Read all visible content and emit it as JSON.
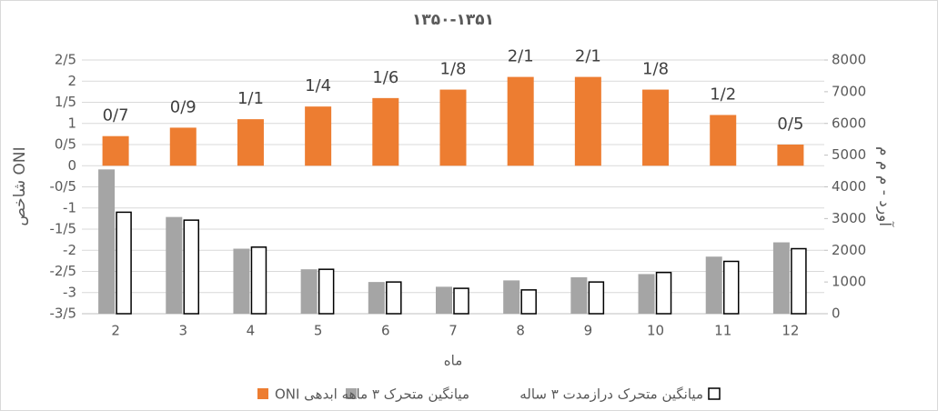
{
  "chart_data": {
    "type": "bar",
    "title": "۱۳۵۰-۱۳۵۱",
    "xlabel": "ماه",
    "ylabel": "شاخص ONI",
    "y2label": "آورد - م م م",
    "categories": [
      "2",
      "3",
      "4",
      "5",
      "6",
      "7",
      "8",
      "9",
      "10",
      "11",
      "12"
    ],
    "series": [
      {
        "name": "ONI",
        "color": "#ed7d31",
        "values": [
          0.7,
          0.9,
          1.1,
          1.4,
          1.6,
          1.8,
          2.1,
          2.1,
          1.8,
          1.2,
          0.5
        ],
        "value_labels": [
          "0/7",
          "0/9",
          "1/1",
          "1/4",
          "1/6",
          "1/8",
          "2/1",
          "2/1",
          "1/8",
          "1/2",
          "0/5"
        ]
      },
      {
        "name": "میانگین متحرک ۳ ماهه ابدهی",
        "color": "#a5a5a5",
        "axis": "y2",
        "values": [
          4550,
          3050,
          2050,
          1400,
          1000,
          850,
          1050,
          1150,
          1250,
          1800,
          2250
        ]
      },
      {
        "name": "میانگین متحرک درازمدت ۳ ساله",
        "color": "#ffffff",
        "edgecolor": "#000000",
        "axis": "y2",
        "values": [
          3200,
          2950,
          2100,
          1400,
          1000,
          800,
          750,
          1000,
          1300,
          1650,
          2050
        ]
      }
    ],
    "ylim": [
      -3.5,
      2.5
    ],
    "yticks": [
      {
        "value": -3.5,
        "label": "-3/5"
      },
      -3,
      {
        "value": -2.5,
        "label": "-2/5"
      },
      -2,
      {
        "value": -1.5,
        "label": "-1/5"
      },
      -1,
      {
        "value": -0.5,
        "label": "-0/5"
      },
      0,
      {
        "value": 0.5,
        "label": "0/5"
      },
      1,
      {
        "value": 1.5,
        "label": "1/5"
      },
      2,
      {
        "value": 2.5,
        "label": "2/5"
      }
    ],
    "y2lim": [
      0,
      8000
    ],
    "y2ticks": [
      0,
      1000,
      2000,
      3000,
      4000,
      5000,
      6000,
      7000,
      8000
    ],
    "grid": true,
    "legend": "bottom"
  }
}
